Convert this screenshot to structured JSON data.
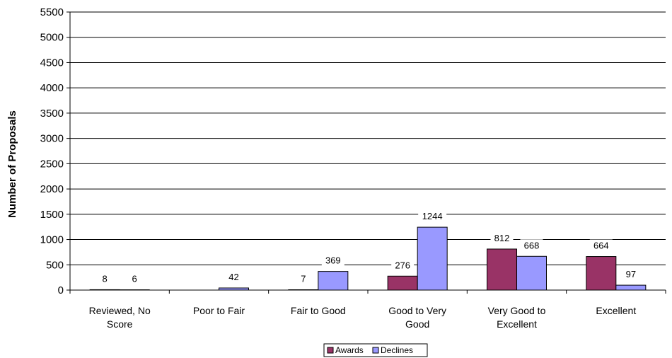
{
  "chart_data": {
    "type": "bar",
    "title": "",
    "xlabel": "",
    "ylabel": "Number of Proposals",
    "ylim": [
      0,
      5500
    ],
    "yticks": [
      0,
      500,
      1000,
      1500,
      2000,
      2500,
      3000,
      3500,
      4000,
      4500,
      5000,
      5500
    ],
    "grid": true,
    "legend_position": "bottom",
    "categories": [
      [
        "Reviewed, No",
        "Score"
      ],
      [
        "Poor to Fair"
      ],
      [
        "Fair to Good"
      ],
      [
        "Good to Very",
        "Good"
      ],
      [
        "Very Good to",
        "Excellent"
      ],
      [
        "Excellent"
      ]
    ],
    "series": [
      {
        "name": "Awards",
        "color": "#993366",
        "values": [
          8,
          0,
          7,
          276,
          812,
          664
        ],
        "labels": [
          "8",
          "",
          "7",
          "276",
          "812",
          "664"
        ]
      },
      {
        "name": "Declines",
        "color": "#9999FF",
        "values": [
          6,
          42,
          369,
          1244,
          668,
          97
        ],
        "labels": [
          "6",
          "42",
          "369",
          "1244",
          "668",
          "97"
        ]
      }
    ]
  }
}
